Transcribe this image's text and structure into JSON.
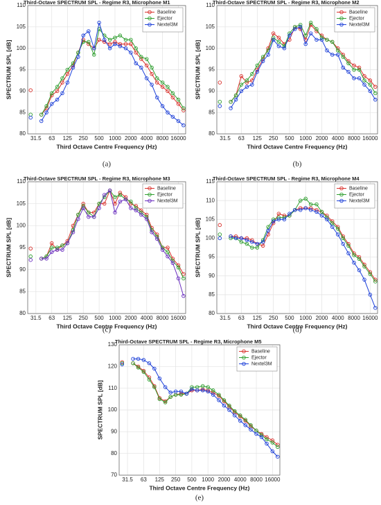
{
  "chart_data": [
    {
      "type": "line",
      "title": "Third-Octave SPECTRUM SPL  - Regime R3, Microphone M1",
      "caption": "(a)",
      "xlabel": "Third Octave Centre Frequency (Hz)",
      "ylabel": "SPECTRUM SPL [dB]",
      "x": [
        25,
        31.5,
        40,
        50,
        63,
        80,
        100,
        125,
        160,
        200,
        250,
        315,
        400,
        500,
        630,
        800,
        1000,
        1250,
        1600,
        2000,
        2500,
        3150,
        4000,
        5000,
        6300,
        8000,
        10000,
        12500,
        16000,
        20000
      ],
      "xlim": [
        22,
        22000
      ],
      "xticks": [
        31.5,
        63,
        125,
        250,
        500,
        1000,
        2000,
        4000,
        8000,
        16000
      ],
      "log_x": true,
      "ylim": [
        80,
        110
      ],
      "yticks": [
        80,
        85,
        90,
        95,
        100,
        105,
        110
      ],
      "grid": true,
      "legend": "upper right",
      "series": [
        {
          "name": "Baseline",
          "color": "#d9302b",
          "values": [
            90.2,
            null,
            84.5,
            86,
            89,
            90,
            92,
            94,
            96,
            99,
            102,
            101,
            100,
            102,
            101.5,
            101,
            101.5,
            101,
            101,
            101,
            99,
            97.5,
            96,
            94,
            92,
            91,
            90,
            88.5,
            87,
            85.5
          ]
        },
        {
          "name": "Ejector",
          "color": "#2f9e2f",
          "values": [
            84.5,
            null,
            84.5,
            86.5,
            89.5,
            91,
            93,
            95,
            96.5,
            99,
            101.5,
            101.5,
            98.5,
            104.5,
            103,
            102,
            102.5,
            103,
            102,
            102,
            100,
            98,
            97.5,
            95.5,
            93,
            92,
            91,
            89.5,
            88,
            86
          ]
        },
        {
          "name": "Nextel3M",
          "color": "#1c3fd8",
          "values": [
            83.8,
            null,
            83,
            85,
            87,
            88,
            89.5,
            92,
            95.5,
            98,
            103,
            104,
            100,
            106,
            102,
            100,
            101,
            100.5,
            100,
            99,
            96.5,
            95.5,
            93,
            91.5,
            88.5,
            86.5,
            85,
            84,
            83,
            82
          ]
        }
      ]
    },
    {
      "type": "line",
      "title": "Third-Octave SPECTRUM SPL  - Regime R3, Microphone M2",
      "caption": "(b)",
      "xlabel": "Third Octave Centre Frequency (Hz)",
      "ylabel": "SPECTRUM SPL [dB]",
      "x": [
        25,
        31.5,
        40,
        50,
        63,
        80,
        100,
        125,
        160,
        200,
        250,
        315,
        400,
        500,
        630,
        800,
        1000,
        1250,
        1600,
        2000,
        2500,
        3150,
        4000,
        5000,
        6300,
        8000,
        10000,
        12500,
        16000,
        20000
      ],
      "xlim": [
        22,
        22000
      ],
      "xticks": [
        31.5,
        63,
        125,
        250,
        500,
        1000,
        2000,
        4000,
        8000,
        16000
      ],
      "log_x": true,
      "ylim": [
        80,
        110
      ],
      "yticks": [
        80,
        85,
        90,
        95,
        100,
        105,
        110
      ],
      "grid": true,
      "legend": "upper right",
      "series": [
        {
          "name": "Baseline",
          "color": "#d9302b",
          "values": [
            92,
            null,
            87.5,
            89,
            93.5,
            92,
            92.5,
            95,
            97.5,
            100,
            103.5,
            102.5,
            101,
            102,
            105,
            104.5,
            102,
            105.5,
            104,
            103,
            102,
            101.5,
            100,
            98.5,
            97,
            96,
            95.5,
            93.5,
            92.5,
            91
          ]
        },
        {
          "name": "Ejector",
          "color": "#2f9e2f",
          "values": [
            87.5,
            null,
            87.5,
            89,
            91.5,
            92.5,
            94,
            96,
            98,
            99.5,
            102.5,
            101.5,
            100.5,
            103.5,
            105,
            105.5,
            103,
            106,
            104.5,
            102.5,
            102,
            101.5,
            99.5,
            98,
            96.5,
            95,
            95,
            92.5,
            91.5,
            89.5
          ]
        },
        {
          "name": "Nextel3M",
          "color": "#1c3fd8",
          "values": [
            86.5,
            null,
            86,
            88,
            90,
            91,
            91.5,
            94.5,
            97,
            98.5,
            102,
            100.5,
            100,
            103,
            104.5,
            105,
            101,
            103.5,
            102,
            102,
            99.5,
            98.5,
            98.5,
            95.5,
            94.5,
            93,
            93,
            91.5,
            90,
            88
          ]
        }
      ]
    },
    {
      "type": "line",
      "title": "Third-Octave SPECTRUM SPL  - Regime R3, Microphone M3",
      "caption": "(c)",
      "xlabel": "Third Octave Centre Frequency (Hz)",
      "ylabel": "SPECTRUM SPL [dB]",
      "x": [
        25,
        31.5,
        40,
        50,
        63,
        80,
        100,
        125,
        160,
        200,
        250,
        315,
        400,
        500,
        630,
        800,
        1000,
        1250,
        1600,
        2000,
        2500,
        3150,
        4000,
        5000,
        6300,
        8000,
        10000,
        12500,
        16000,
        20000
      ],
      "xlim": [
        22,
        22000
      ],
      "xticks": [
        31.5,
        63,
        125,
        250,
        500,
        1000,
        2000,
        4000,
        8000,
        16000
      ],
      "log_x": true,
      "ylim": [
        80,
        110
      ],
      "yticks": [
        80,
        85,
        90,
        95,
        100,
        105,
        110
      ],
      "grid": true,
      "legend": "upper right",
      "series": [
        {
          "name": "Baseline",
          "color": "#d9302b",
          "values": [
            94.8,
            null,
            92.5,
            93,
            96,
            94.5,
            95.5,
            96.5,
            100,
            102.5,
            105,
            103,
            103,
            105,
            105,
            108,
            105,
            107.5,
            106.5,
            105,
            104.5,
            103.5,
            102.5,
            99.5,
            98,
            95,
            95,
            92.5,
            91,
            89
          ]
        },
        {
          "name": "Ejector",
          "color": "#2f9e2f",
          "values": [
            93,
            null,
            92.5,
            93,
            95,
            95,
            95.5,
            96,
            99,
            102.5,
            104.5,
            103,
            102,
            105,
            106.5,
            108,
            106.5,
            107,
            106,
            105.5,
            104,
            103,
            102,
            99,
            97.5,
            95,
            94,
            92,
            90.5,
            88
          ]
        },
        {
          "name": "Nextel3M",
          "color": "#6a2fc0",
          "values": [
            92.2,
            null,
            92.5,
            92.5,
            94,
            94.5,
            94.5,
            96,
            98.5,
            101.5,
            104,
            102,
            102,
            104,
            107,
            108,
            103,
            105.5,
            106,
            104,
            103.5,
            102.5,
            101.5,
            98.5,
            97,
            94.5,
            93,
            91.5,
            88,
            84
          ]
        }
      ]
    },
    {
      "type": "line",
      "title": "Third-Octave SPECTRUM SPL  - Regime R3, Microphone M4",
      "caption": "(d)",
      "xlabel": "Third Octave Centre Frequency (Hz)",
      "ylabel": "SPECTRUM SPL [dB]",
      "x": [
        25,
        31.5,
        40,
        50,
        63,
        80,
        100,
        125,
        160,
        200,
        250,
        315,
        400,
        500,
        630,
        800,
        1000,
        1250,
        1600,
        2000,
        2500,
        3150,
        4000,
        5000,
        6300,
        8000,
        10000,
        12500,
        16000,
        20000
      ],
      "xlim": [
        22,
        22000
      ],
      "xticks": [
        31.5,
        63,
        125,
        250,
        500,
        1000,
        2000,
        4000,
        8000,
        16000
      ],
      "log_x": true,
      "ylim": [
        80,
        115
      ],
      "yticks": [
        80,
        85,
        90,
        95,
        100,
        105,
        110,
        115
      ],
      "grid": true,
      "legend": "upper right",
      "series": [
        {
          "name": "Baseline",
          "color": "#d9302b",
          "values": [
            103.5,
            null,
            100.5,
            100.5,
            100,
            100,
            99.5,
            98.5,
            98,
            101,
            104,
            106.5,
            106,
            106,
            107.5,
            108,
            108,
            108,
            107.5,
            107,
            106,
            104.5,
            103,
            100.5,
            98.5,
            96,
            95,
            93,
            91,
            89
          ]
        },
        {
          "name": "Ejector",
          "color": "#2f9e2f",
          "values": [
            101,
            null,
            100,
            100,
            99,
            98.5,
            97.5,
            97.5,
            99.5,
            103,
            105,
            105.5,
            105.5,
            106,
            107.5,
            110,
            110.5,
            109,
            109,
            107,
            105.5,
            104,
            102.5,
            100,
            98,
            95.5,
            94.5,
            92.5,
            90.5,
            88.5
          ]
        },
        {
          "name": "Nextel3M",
          "color": "#1c3fd8",
          "values": [
            100,
            null,
            100.5,
            100,
            100,
            99.5,
            99,
            98.5,
            99,
            102,
            104.5,
            105,
            105,
            106.5,
            107.5,
            107.5,
            108,
            107.5,
            107,
            106,
            105,
            103,
            101,
            98.5,
            96,
            93.5,
            91.5,
            89,
            85,
            81.5
          ]
        }
      ]
    },
    {
      "type": "line",
      "title": "Third-Octave SPECTRUM SPL  - Regime R3, Microphone M5",
      "caption": "(e)",
      "xlabel": "Third Octave Centre Frequency (Hz)",
      "ylabel": "SPECTRUM SPL [dB]",
      "x": [
        25,
        31.5,
        40,
        50,
        63,
        80,
        100,
        125,
        160,
        200,
        250,
        315,
        400,
        500,
        630,
        800,
        1000,
        1250,
        1600,
        2000,
        2500,
        3150,
        4000,
        5000,
        6300,
        8000,
        10000,
        12500,
        16000,
        20000
      ],
      "xlim": [
        22,
        22000
      ],
      "xticks": [
        31.5,
        63,
        125,
        250,
        500,
        1000,
        2000,
        4000,
        8000,
        16000
      ],
      "log_x": true,
      "ylim": [
        70,
        130
      ],
      "yticks": [
        70,
        80,
        90,
        100,
        110,
        120,
        130
      ],
      "grid": true,
      "legend": "upper right",
      "series": [
        {
          "name": "Baseline",
          "color": "#d9302b",
          "values": [
            122,
            null,
            121.5,
            120,
            118,
            115,
            111,
            105.5,
            104,
            106,
            107,
            107.5,
            107.5,
            109,
            109,
            109.5,
            109,
            108,
            106.5,
            104,
            101.5,
            99,
            97,
            95,
            92.5,
            90.5,
            89,
            87.5,
            86,
            84
          ]
        },
        {
          "name": "Ejector",
          "color": "#2f9e2f",
          "values": [
            121.5,
            null,
            121.5,
            119.5,
            117.5,
            114,
            110.5,
            105,
            103.5,
            106,
            107,
            107,
            107.5,
            110.5,
            110.5,
            111,
            110.5,
            109,
            107,
            104.5,
            102,
            99.5,
            97.5,
            95.5,
            93,
            90.5,
            88.5,
            86.5,
            85,
            83
          ]
        },
        {
          "name": "Nextel3M",
          "color": "#1c3fd8",
          "values": [
            121,
            null,
            123.5,
            123.5,
            123,
            121.5,
            119,
            114.5,
            110.5,
            108,
            108.5,
            108.5,
            107.5,
            109.5,
            109,
            109,
            108.5,
            107,
            104.5,
            102,
            100,
            97.5,
            95,
            93,
            91,
            89,
            87.5,
            84.5,
            81,
            78.5
          ]
        }
      ]
    }
  ]
}
